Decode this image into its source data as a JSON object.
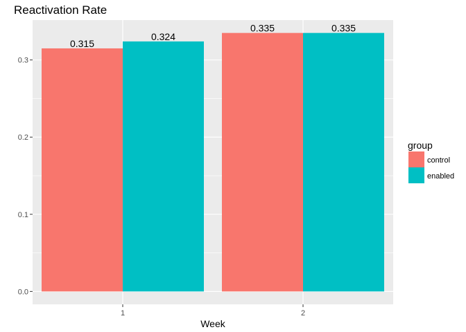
{
  "chart_data": {
    "type": "bar",
    "title": "Reactivation Rate",
    "xlabel": "Week",
    "ylabel": "",
    "categories": [
      "1",
      "2"
    ],
    "series": [
      {
        "name": "control",
        "values": [
          0.315,
          0.335
        ],
        "labels": [
          "0.315",
          "0.335"
        ],
        "color": "#F8766D"
      },
      {
        "name": "enabled",
        "values": [
          0.324,
          0.335
        ],
        "labels": [
          "0.324",
          "0.335"
        ],
        "color": "#00BFC4"
      }
    ],
    "yticks": [
      "0.0",
      "0.1",
      "0.2",
      "0.3"
    ],
    "ylim": [
      -0.0167,
      0.3517
    ],
    "grid": true,
    "legend": {
      "title": "group",
      "position": "right"
    },
    "colors": {
      "panel_background": "#EBEBEB",
      "grid": "#FFFFFF"
    }
  }
}
